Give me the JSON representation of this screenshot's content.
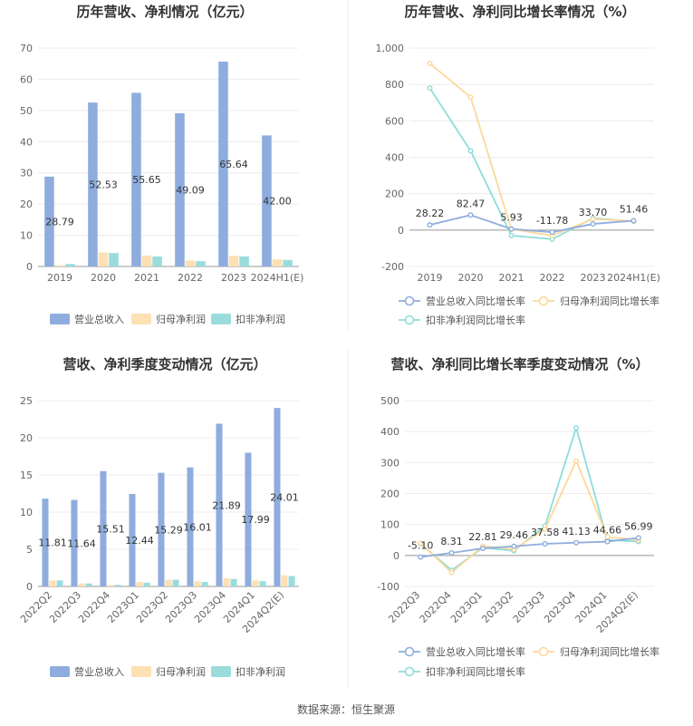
{
  "source": "数据来源：恒生聚源",
  "colors": {
    "revenue": "#8eadde",
    "net": "#fde0b3",
    "deduct": "#9adcdc",
    "revenue_line": "#8eadde",
    "net_line": "#fdd89a",
    "deduct_line": "#8edcdc"
  },
  "chart_data": [
    {
      "id": "c1",
      "type": "bar",
      "title": "历年营收、净利情况（亿元）",
      "categories": [
        "2019",
        "2020",
        "2021",
        "2022",
        "2023",
        "2024H1(E)"
      ],
      "series": [
        {
          "name": "营业总收入",
          "values": [
            28.79,
            52.53,
            55.65,
            49.09,
            65.64,
            42.0
          ]
        },
        {
          "name": "归母净利润",
          "values": [
            0.4,
            4.5,
            3.5,
            1.9,
            3.4,
            2.3
          ]
        },
        {
          "name": "扣非净利润",
          "values": [
            0.8,
            4.3,
            3.2,
            1.7,
            3.2,
            2.1
          ]
        }
      ],
      "labels": [
        "28.79",
        "52.53",
        "55.65",
        "49.09",
        "65.64",
        "42.00"
      ],
      "ylim": [
        0,
        70
      ],
      "yticks": [
        "0",
        "10",
        "20",
        "30",
        "40",
        "50",
        "60",
        "70"
      ],
      "legend": "bottom"
    },
    {
      "id": "c2",
      "type": "line",
      "title": "历年营收、净利同比增长率情况（%）",
      "categories": [
        "2019",
        "2020",
        "2021",
        "2022",
        "2023",
        "2024H1(E)"
      ],
      "series": [
        {
          "name": "营业总收入同比增长率",
          "values": [
            28.22,
            82.47,
            5.93,
            -11.78,
            33.7,
            51.46
          ]
        },
        {
          "name": "归母净利润同比增长率",
          "values": [
            915,
            730,
            5,
            -30,
            60,
            50
          ]
        },
        {
          "name": "扣非净利润同比增长率",
          "values": [
            780,
            435,
            -30,
            -50,
            65,
            48
          ]
        }
      ],
      "labels": [
        "28.22",
        "82.47",
        "5.93",
        "-11.78",
        "33.70",
        "51.46"
      ],
      "ylim": [
        -200,
        1000
      ],
      "yticks": [
        "-200",
        "0",
        "200",
        "400",
        "600",
        "800",
        "1,000"
      ],
      "legend": "bottom"
    },
    {
      "id": "c3",
      "type": "bar",
      "title": "营收、净利季度变动情况（亿元）",
      "categories": [
        "2022Q2",
        "2022Q3",
        "2022Q4",
        "2023Q1",
        "2023Q2",
        "2023Q3",
        "2023Q4",
        "2024Q1",
        "2024Q2(E)"
      ],
      "series": [
        {
          "name": "营业总收入",
          "values": [
            11.81,
            11.64,
            15.51,
            12.44,
            15.29,
            16.01,
            21.89,
            17.99,
            24.01
          ]
        },
        {
          "name": "归母净利润",
          "values": [
            0.8,
            0.4,
            0.2,
            0.6,
            0.9,
            0.7,
            1.1,
            0.8,
            1.5
          ]
        },
        {
          "name": "扣非净利润",
          "values": [
            0.8,
            0.4,
            0.2,
            0.5,
            0.9,
            0.6,
            1.0,
            0.7,
            1.4
          ]
        }
      ],
      "labels": [
        "11.81",
        "11.64",
        "15.51",
        "12.44",
        "15.29",
        "16.01",
        "21.89",
        "17.99",
        "24.01"
      ],
      "ylim": [
        0,
        25
      ],
      "yticks": [
        "0",
        "5",
        "10",
        "15",
        "20",
        "25"
      ],
      "legend": "bottom"
    },
    {
      "id": "c4",
      "type": "line",
      "title": "营收、净利同比增长率季度变动情况（%）",
      "categories": [
        "2022Q3",
        "2022Q4",
        "2023Q1",
        "2023Q2",
        "2023Q3",
        "2023Q4",
        "2024Q1",
        "2024Q2(E)"
      ],
      "series": [
        {
          "name": "营业总收入同比增长率",
          "values": [
            -5.1,
            8.31,
            22.81,
            29.46,
            37.58,
            41.13,
            44.66,
            56.99
          ]
        },
        {
          "name": "归母净利润同比增长率",
          "values": [
            40,
            -55,
            30,
            20,
            85,
            305,
            60,
            50
          ]
        },
        {
          "name": "扣非净利润同比增长率",
          "values": [
            38,
            -48,
            25,
            15,
            95,
            412,
            50,
            45
          ]
        }
      ],
      "labels": [
        "-5.10",
        "8.31",
        "22.81",
        "29.46",
        "37.58",
        "41.13",
        "44.66",
        "56.99"
      ],
      "ylim": [
        -100,
        500
      ],
      "yticks": [
        "-100",
        "0",
        "100",
        "200",
        "300",
        "400",
        "500"
      ],
      "legend": "bottom"
    }
  ]
}
